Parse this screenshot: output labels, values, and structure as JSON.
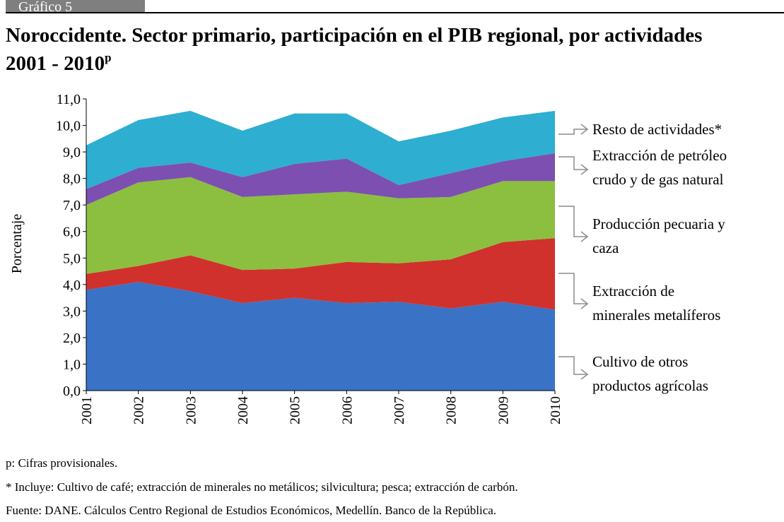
{
  "chart_data": {
    "type": "stacked_area",
    "figure_label": "Gráfico 5",
    "title": "Noroccidente. Sector primario, participación en el PIB regional, por actividades",
    "subtitle": "2001 - 2010",
    "subtitle_superscript": "p",
    "y_label": "Porcentaje",
    "categories": [
      "2001",
      "2002",
      "2003",
      "2004",
      "2005",
      "2006",
      "2007",
      "2008",
      "2009",
      "2010"
    ],
    "series": [
      {
        "name": "Cultivo de otros productos agrícolas",
        "color": "#3a72c6",
        "values": [
          3.8,
          4.1,
          3.75,
          3.3,
          3.5,
          3.3,
          3.35,
          3.1,
          3.35,
          3.05
        ]
      },
      {
        "name": "Extracción  de minerales  metalíferos",
        "color": "#d0312d",
        "values": [
          0.6,
          0.6,
          1.35,
          1.25,
          1.1,
          1.55,
          1.45,
          1.85,
          2.25,
          2.7
        ]
      },
      {
        "name": "Producción pecuaria y caza",
        "color": "#8cbf3f",
        "values": [
          2.6,
          3.15,
          2.95,
          2.75,
          2.8,
          2.65,
          2.45,
          2.35,
          2.3,
          2.15
        ]
      },
      {
        "name": "Extracción  de petróleo crudo y de gas natural",
        "color": "#7d4fb0",
        "values": [
          0.6,
          0.55,
          0.55,
          0.75,
          1.15,
          1.25,
          0.5,
          0.9,
          0.75,
          1.05
        ]
      },
      {
        "name": "Resto de actividades*",
        "color": "#2eaed0",
        "values": [
          1.65,
          1.8,
          1.95,
          1.75,
          1.9,
          1.7,
          1.65,
          1.6,
          1.65,
          1.6
        ]
      }
    ],
    "ylim": [
      0,
      11
    ],
    "yticks": [
      {
        "value": 0,
        "label": "0,0"
      },
      {
        "value": 1,
        "label": "1,0"
      },
      {
        "value": 2,
        "label": "2,0"
      },
      {
        "value": 3,
        "label": "3,0"
      },
      {
        "value": 4,
        "label": "4,0"
      },
      {
        "value": 5,
        "label": "5,0"
      },
      {
        "value": 6,
        "label": "6,0"
      },
      {
        "value": 7,
        "label": "7,0"
      },
      {
        "value": 8,
        "label": "8,0"
      },
      {
        "value": 9,
        "label": "9,0"
      },
      {
        "value": 10,
        "label": "10,0"
      },
      {
        "value": 11,
        "label": "11,0"
      }
    ],
    "grid": false,
    "legend": "right",
    "notes": [
      "p: Cifras provisionales.",
      "* Incluye: Cultivo de café; extracción de minerales no metálicos; silvicultura; pesca; extracción de carbón.",
      "Fuente: DANE. Cálculos Centro Regional de Estudios Económicos, Medellín. Banco de la República."
    ]
  }
}
